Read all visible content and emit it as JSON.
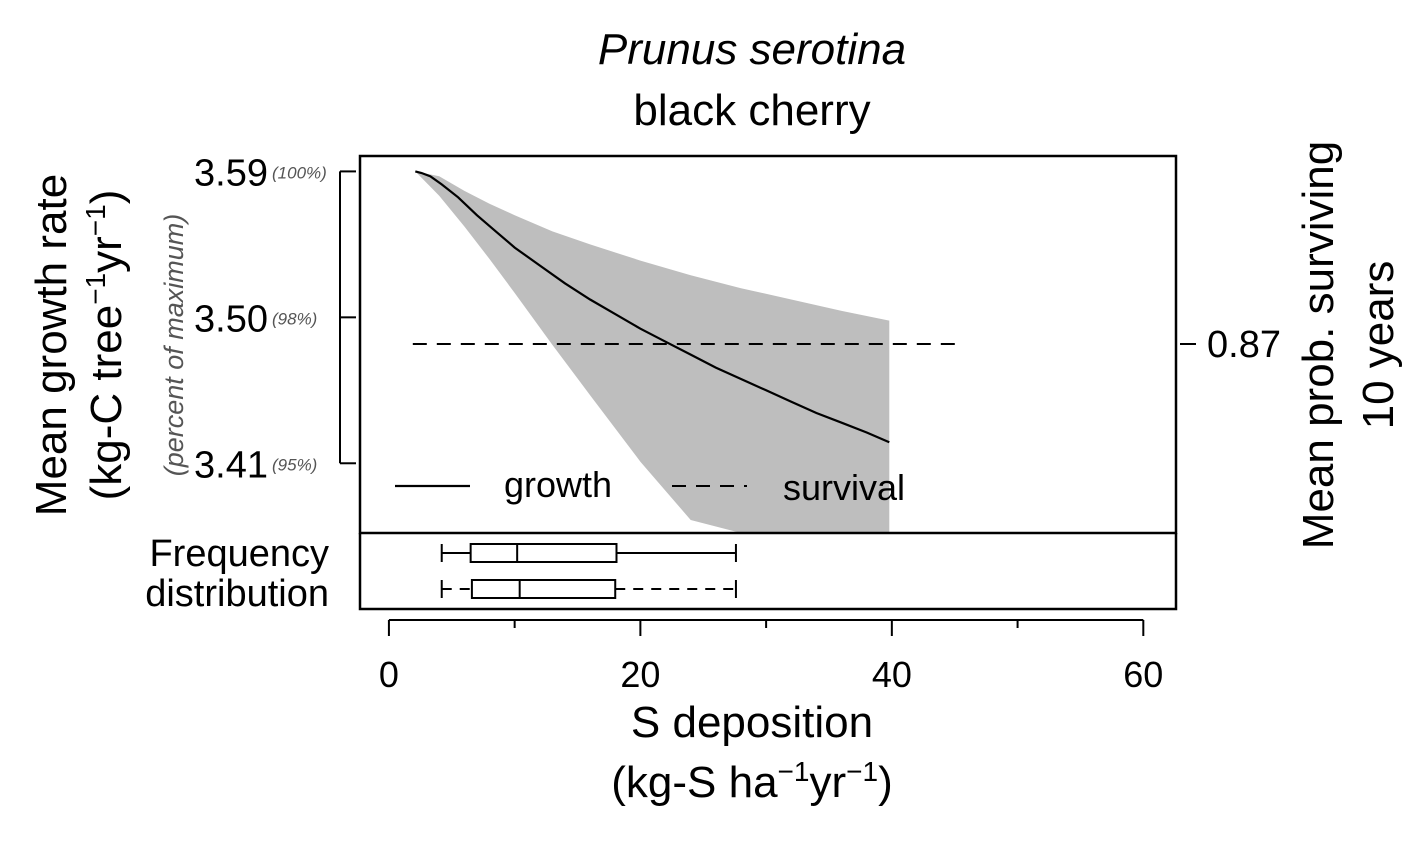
{
  "chart_data": {
    "type": "line",
    "title": "Prunus serotina",
    "subtitle": "black cherry",
    "xlabel": {
      "line1": "S deposition",
      "line2": {
        "pre": "(kg-S ha",
        "sup1": "−1",
        "mid": "yr",
        "sup2": "−1",
        "post": ")"
      }
    },
    "ylabel_left": {
      "line1": "Mean growth rate",
      "line2": {
        "pre": "(kg-C tree",
        "sup1": "−1",
        "mid": "yr",
        "sup2": "−1",
        "post": ")"
      },
      "secondary": "(percent of maximum)"
    },
    "ylabel_right": {
      "line1": "Mean prob. surviving",
      "line2": "10 years"
    },
    "x_axis": {
      "ticks": [
        0,
        20,
        40,
        60
      ],
      "tick_labels": [
        "0",
        "20",
        "40",
        "60"
      ],
      "minor_ticks": [
        10,
        30,
        50
      ],
      "range": [
        -2.3,
        62.6
      ]
    },
    "y_axis_left": {
      "ticks": [
        3.59,
        3.5,
        3.41
      ],
      "tick_labels": [
        "3.59",
        "3.50",
        "3.41"
      ],
      "percent_labels": [
        "(100%)",
        "(98%)",
        "(95%)"
      ],
      "range": [
        3.367,
        3.5995
      ]
    },
    "y_axis_right": {
      "ticks": [
        0.87
      ],
      "tick_labels": [
        "0.87"
      ]
    },
    "series": [
      {
        "name": "growth",
        "style": "solid",
        "x": [
          2.1,
          2.6,
          3.3,
          4.2,
          5.5,
          7.0,
          8.5,
          10.0,
          12.0,
          14.0,
          16.0,
          18.0,
          20.0,
          22.0,
          24.0,
          26.0,
          28.0,
          30.0,
          32.0,
          34.0,
          36.0,
          38.0,
          39.8
        ],
        "y": [
          3.59,
          3.589,
          3.587,
          3.582,
          3.574,
          3.563,
          3.553,
          3.543,
          3.532,
          3.521,
          3.511,
          3.502,
          3.493,
          3.485,
          3.477,
          3.469,
          3.462,
          3.455,
          3.448,
          3.441,
          3.435,
          3.429,
          3.423
        ]
      },
      {
        "name": "survival",
        "style": "dashed",
        "x": [
          1.9,
          45.1
        ],
        "y": [
          0.87,
          0.87
        ]
      }
    ],
    "ci_band": {
      "color": "#bebebe",
      "x": [
        2.1,
        4.0,
        6.0,
        8.0,
        10.0,
        13.0,
        16.0,
        20.0,
        24.0,
        28.0,
        32.0,
        36.0,
        39.8
      ],
      "upper": [
        3.59,
        3.587,
        3.578,
        3.57,
        3.563,
        3.553,
        3.545,
        3.535,
        3.526,
        3.518,
        3.511,
        3.504,
        3.498
      ],
      "lower": [
        3.59,
        3.575,
        3.556,
        3.536,
        3.515,
        3.483,
        3.452,
        3.411,
        3.375,
        3.34,
        3.305,
        3.272,
        3.242
      ]
    },
    "boxplots": {
      "label_line1": "Frequency",
      "label_line2": "distribution",
      "items": [
        {
          "series": "growth",
          "min": 4.2,
          "q1": 6.5,
          "median": 10.2,
          "q3": 18.1,
          "max": 27.6,
          "whisker_style": "solid"
        },
        {
          "series": "survival",
          "min": 4.2,
          "q1": 6.6,
          "median": 10.4,
          "q3": 18.0,
          "max": 27.6,
          "whisker_style": "dashed"
        }
      ]
    },
    "legend": {
      "position": "bottom-left",
      "entries": [
        "growth",
        "survival"
      ]
    },
    "grid": false
  }
}
